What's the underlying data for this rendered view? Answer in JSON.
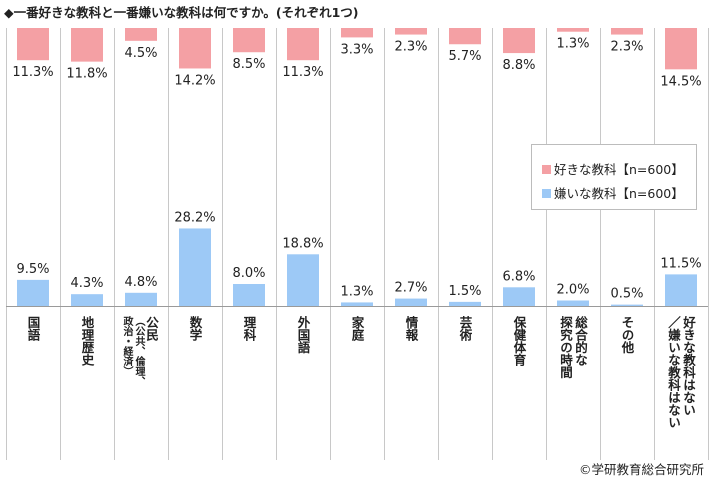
{
  "title": "◆一番好きな教科と一番嫌いな教科は何ですか。(それぞれ1つ)",
  "copyright": "©学研教育総合研究所",
  "chart_data": {
    "type": "bar",
    "categories": [
      "国語",
      "地理歴史",
      "公民（公共、倫理、政治・経済）",
      "数学",
      "理科",
      "外国語",
      "家庭",
      "情報",
      "芸術",
      "保健体育",
      "総合的な探究の時間",
      "その他",
      "好きな教科はない／嫌いな教科はない"
    ],
    "category_lines": [
      [
        "国語"
      ],
      [
        "地理歴史"
      ],
      [
        "公民",
        "（公共、倫理、",
        "政治・経済）"
      ],
      [
        "数学"
      ],
      [
        "理科"
      ],
      [
        "外国語"
      ],
      [
        "家庭"
      ],
      [
        "情報"
      ],
      [
        "芸術"
      ],
      [
        "保健体育"
      ],
      [
        "総合的な",
        "探究の時間"
      ],
      [
        "その他"
      ],
      [
        "好きな教科はない",
        "／嫌いな教科はない"
      ]
    ],
    "series": [
      {
        "name": "好きな教科【n=600】",
        "color": "#f4a0a4",
        "direction": "down",
        "values": [
          11.3,
          11.8,
          4.5,
          14.2,
          8.5,
          11.3,
          3.3,
          2.3,
          5.7,
          8.8,
          1.3,
          2.3,
          14.5
        ],
        "labels": [
          "11.3%",
          "11.8%",
          "4.5%",
          "14.2%",
          "8.5%",
          "11.3%",
          "3.3%",
          "2.3%",
          "5.7%",
          "8.8%",
          "1.3%",
          "2.3%",
          "14.5%"
        ]
      },
      {
        "name": "嫌いな教科【n=600】",
        "color": "#9dc9f6",
        "direction": "up",
        "values": [
          9.5,
          4.3,
          4.8,
          28.2,
          8.0,
          18.8,
          1.3,
          2.7,
          1.5,
          6.8,
          2.0,
          0.5,
          11.5
        ],
        "labels": [
          "9.5%",
          "4.3%",
          "4.8%",
          "28.2%",
          "8.0%",
          "18.8%",
          "1.3%",
          "2.7%",
          "1.5%",
          "6.8%",
          "2.0%",
          "0.5%",
          "11.5%"
        ]
      }
    ],
    "legend": {
      "position": "right",
      "items": [
        "好きな教科【n=600】",
        "嫌いな教科【n=600】"
      ]
    },
    "grid": false
  }
}
